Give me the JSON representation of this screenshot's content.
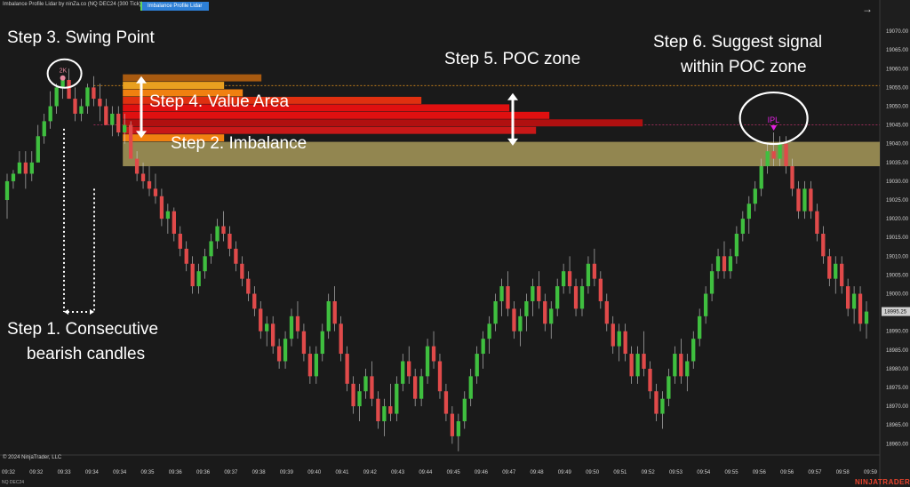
{
  "header": {
    "instrument": "Imbalance Profile Lidar by ninZa.co (NQ DEC24 (300 Tick))",
    "indicator_button": "Imbalance Profile Lidar",
    "instrument_short": "NQ DEC24"
  },
  "footer": {
    "copyright": "© 2024 NinjaTrader, LLC",
    "brand": "NINJATRADER"
  },
  "annotations": {
    "step1": "Step 1. Consecutive",
    "step1b": "bearish candles",
    "step2": "Step 2.  Imbalance",
    "step3": "Step 3. Swing Point",
    "step4": "Step 4. Value Area",
    "step5": "Step 5. POC zone",
    "step6": "Step 6. Suggest signal",
    "step6b": "within POC zone",
    "swing_label": "2K",
    "signal_label": "IPL"
  },
  "colors": {
    "background": "#1a1a1a",
    "bull": "#3fbf3f",
    "bear": "#e04a4a",
    "imbalance_zone": "#a89a5a",
    "poc_line": "#c0306a",
    "value_area_line": "#d88a1a",
    "signal": "#e020e0"
  },
  "chart_data": {
    "type": "candlestick",
    "y_axis": {
      "range": [
        18957,
        19075
      ],
      "ticks": [
        "19070.00",
        "19065.00",
        "19060.00",
        "19055.00",
        "19050.00",
        "19045.00",
        "19040.00",
        "19035.00",
        "19030.00",
        "19025.00",
        "19020.00",
        "19015.00",
        "19010.00",
        "19005.00",
        "19000.00",
        "18995.00",
        "18990.00",
        "18985.00",
        "18980.00",
        "18975.00",
        "18970.00",
        "18965.00",
        "18960.00"
      ],
      "tick_values": [
        19070,
        19065,
        19060,
        19055,
        19050,
        19045,
        19040,
        19035,
        19030,
        19025,
        19020,
        19015,
        19010,
        19005,
        19000,
        18995,
        18990,
        18985,
        18980,
        18975,
        18970,
        18965,
        18960
      ],
      "last_price_label": "18995.25",
      "last_price": 18995.25
    },
    "x_axis": {
      "labels": [
        "09:32",
        "09:32",
        "09:33",
        "09:34",
        "09:34",
        "09:35",
        "09:36",
        "09:36",
        "09:37",
        "09:38",
        "09:39",
        "09:40",
        "09:41",
        "09:42",
        "09:43",
        "09:44",
        "09:45",
        "09:46",
        "09:47",
        "09:48",
        "09:49",
        "09:50",
        "09:51",
        "09:52",
        "09:53",
        "09:54",
        "09:55",
        "09:56",
        "09:56",
        "09:57",
        "09:58",
        "09:59"
      ]
    },
    "imbalance_zone": {
      "low": 19034,
      "high": 19040.5
    },
    "poc_price": 19045,
    "value_area_high": 19055.5,
    "swing_price": 19058,
    "signal_price": 19043,
    "profile_bars": [
      {
        "price": 19057.5,
        "volume": 0.52,
        "color": "#a85a10"
      },
      {
        "price": 19055.5,
        "volume": 0.38,
        "color": "#e8a020"
      },
      {
        "price": 19053.5,
        "volume": 0.45,
        "color": "#f08010"
      },
      {
        "price": 19051.5,
        "volume": 1.12,
        "color": "#e03010"
      },
      {
        "price": 19049.5,
        "volume": 1.45,
        "color": "#e01010"
      },
      {
        "price": 19047.5,
        "volume": 1.6,
        "color": "#e01010"
      },
      {
        "price": 19045.5,
        "volume": 1.95,
        "color": "#b01010"
      },
      {
        "price": 19043.5,
        "volume": 1.55,
        "color": "#c81818"
      },
      {
        "price": 19041.5,
        "volume": 0.38,
        "color": "#f08010"
      }
    ],
    "candles": [
      [
        19025.0,
        19032.0,
        19020.0,
        19030.0
      ],
      [
        19030.0,
        19033.0,
        19028.0,
        19032.0
      ],
      [
        19032.0,
        19038.0,
        19032.0,
        19035.0
      ],
      [
        19035.0,
        19038.0,
        19028.0,
        19032.0
      ],
      [
        19032.0,
        19038.0,
        19030.0,
        19035.0
      ],
      [
        19035.0,
        19045.0,
        19035.0,
        19042.0
      ],
      [
        19042.0,
        19048.0,
        19040.0,
        19046.0
      ],
      [
        19046.0,
        19054.0,
        19044.0,
        19050.0
      ],
      [
        19050.0,
        19056.0,
        19048.0,
        19055.0
      ],
      [
        19055.0,
        19058.0,
        19052.0,
        19057.0
      ],
      [
        19057.0,
        19060.0,
        19052.0,
        19052.0
      ],
      [
        19052.0,
        19055.0,
        19046.0,
        19048.0
      ],
      [
        19048.0,
        19052.0,
        19046.0,
        19050.0
      ],
      [
        19050.0,
        19056.0,
        19048.0,
        19055.0
      ],
      [
        19055.0,
        19058.0,
        19050.0,
        19052.0
      ],
      [
        19052.0,
        19056.0,
        19046.0,
        19050.0
      ],
      [
        19050.0,
        19052.0,
        19045.0,
        19045.0
      ],
      [
        19045.0,
        19050.0,
        19042.0,
        19048.0
      ],
      [
        19048.0,
        19050.0,
        19042.0,
        19043.0
      ],
      [
        19043.0,
        19048.0,
        19040.0,
        19045.0
      ],
      [
        19045.0,
        19046.0,
        19036.0,
        19036.0
      ],
      [
        19036.0,
        19038.0,
        19030.0,
        19032.0
      ],
      [
        19032.0,
        19035.0,
        19028.0,
        19030.0
      ],
      [
        19030.0,
        19034.0,
        19026.0,
        19028.0
      ],
      [
        19028.0,
        19032.0,
        19024.0,
        19026.0
      ],
      [
        19026.0,
        19028.0,
        19018.0,
        19020.0
      ],
      [
        19020.0,
        19024.0,
        19016.0,
        19022.0
      ],
      [
        19022.0,
        19023.0,
        19014.0,
        19016.0
      ],
      [
        19016.0,
        19018.0,
        19010.0,
        19012.0
      ],
      [
        19012.0,
        19014.0,
        19006.0,
        19008.0
      ],
      [
        19008.0,
        19010.0,
        19000.0,
        19002.0
      ],
      [
        19002.0,
        19008.0,
        19000.0,
        19006.0
      ],
      [
        19006.0,
        19012.0,
        19004.0,
        19010.0
      ],
      [
        19010.0,
        19016.0,
        19008.0,
        19014.0
      ],
      [
        19014.0,
        19020.0,
        19012.0,
        19018.0
      ],
      [
        19018.0,
        19022.0,
        19014.0,
        19016.0
      ],
      [
        19016.0,
        19018.0,
        19010.0,
        19012.0
      ],
      [
        19012.0,
        19014.0,
        19006.0,
        19008.0
      ],
      [
        19008.0,
        19010.0,
        19002.0,
        19004.0
      ],
      [
        19004.0,
        19006.0,
        18998.0,
        19000.0
      ],
      [
        19000.0,
        19002.0,
        18994.0,
        18996.0
      ],
      [
        18996.0,
        18998.0,
        18988.0,
        18990.0
      ],
      [
        18990.0,
        18994.0,
        18986.0,
        18992.0
      ],
      [
        18992.0,
        18994.0,
        18984.0,
        18986.0
      ],
      [
        18986.0,
        18988.0,
        18980.0,
        18982.0
      ],
      [
        18982.0,
        18990.0,
        18980.0,
        18988.0
      ],
      [
        18988.0,
        18996.0,
        18986.0,
        18994.0
      ],
      [
        18994.0,
        18998.0,
        18988.0,
        18990.0
      ],
      [
        18990.0,
        18992.0,
        18982.0,
        18984.0
      ],
      [
        18984.0,
        18986.0,
        18976.0,
        18978.0
      ],
      [
        18978.0,
        18986.0,
        18976.0,
        18984.0
      ],
      [
        18984.0,
        18992.0,
        18982.0,
        18990.0
      ],
      [
        18990.0,
        19000.0,
        18988.0,
        18998.0
      ],
      [
        18998.0,
        19002.0,
        18990.0,
        18992.0
      ],
      [
        18992.0,
        18994.0,
        18982.0,
        18984.0
      ],
      [
        18984.0,
        18986.0,
        18974.0,
        18976.0
      ],
      [
        18976.0,
        18978.0,
        18968.0,
        18970.0
      ],
      [
        18970.0,
        18976.0,
        18966.0,
        18974.0
      ],
      [
        18974.0,
        18980.0,
        18972.0,
        18978.0
      ],
      [
        18978.0,
        18982.0,
        18970.0,
        18972.0
      ],
      [
        18972.0,
        18974.0,
        18964.0,
        18966.0
      ],
      [
        18966.0,
        18972.0,
        18962.0,
        18970.0
      ],
      [
        18970.0,
        18976.0,
        18966.0,
        18968.0
      ],
      [
        18968.0,
        18978.0,
        18966.0,
        18976.0
      ],
      [
        18976.0,
        18984.0,
        18974.0,
        18982.0
      ],
      [
        18982.0,
        18986.0,
        18976.0,
        18978.0
      ],
      [
        18978.0,
        18980.0,
        18970.0,
        18972.0
      ],
      [
        18972.0,
        18980.0,
        18970.0,
        18978.0
      ],
      [
        18978.0,
        18988.0,
        18976.0,
        18986.0
      ],
      [
        18986.0,
        18990.0,
        18980.0,
        18982.0
      ],
      [
        18982.0,
        18984.0,
        18972.0,
        18974.0
      ],
      [
        18974.0,
        18976.0,
        18966.0,
        18968.0
      ],
      [
        18968.0,
        18970.0,
        18960.0,
        18962.0
      ],
      [
        18962.0,
        18968.0,
        18958.0,
        18966.0
      ],
      [
        18966.0,
        18974.0,
        18964.0,
        18972.0
      ],
      [
        18972.0,
        18980.0,
        18970.0,
        18978.0
      ],
      [
        18978.0,
        18986.0,
        18976.0,
        18984.0
      ],
      [
        18984.0,
        18990.0,
        18980.0,
        18988.0
      ],
      [
        18988.0,
        18994.0,
        18984.0,
        18992.0
      ],
      [
        18992.0,
        19000.0,
        18990.0,
        18998.0
      ],
      [
        18998.0,
        19004.0,
        18994.0,
        19002.0
      ],
      [
        19002.0,
        19006.0,
        18994.0,
        18996.0
      ],
      [
        18996.0,
        18998.0,
        18988.0,
        18990.0
      ],
      [
        18990.0,
        18996.0,
        18986.0,
        18994.0
      ],
      [
        18994.0,
        19000.0,
        18990.0,
        18998.0
      ],
      [
        18998.0,
        19004.0,
        18994.0,
        19002.0
      ],
      [
        19002.0,
        19006.0,
        18996.0,
        18998.0
      ],
      [
        18998.0,
        19000.0,
        18990.0,
        18992.0
      ],
      [
        18992.0,
        18998.0,
        18988.0,
        18996.0
      ],
      [
        18996.0,
        19004.0,
        18994.0,
        19002.0
      ],
      [
        19002.0,
        19008.0,
        19000.0,
        19006.0
      ],
      [
        19006.0,
        19010.0,
        19000.0,
        19002.0
      ],
      [
        19002.0,
        19004.0,
        18994.0,
        18996.0
      ],
      [
        18996.0,
        19004.0,
        18994.0,
        19002.0
      ],
      [
        19002.0,
        19010.0,
        19000.0,
        19008.0
      ],
      [
        19008.0,
        19012.0,
        19002.0,
        19004.0
      ],
      [
        19004.0,
        19006.0,
        18996.0,
        18998.0
      ],
      [
        18998.0,
        19000.0,
        18990.0,
        18992.0
      ],
      [
        18992.0,
        18994.0,
        18984.0,
        18986.0
      ],
      [
        18986.0,
        18992.0,
        18982.0,
        18990.0
      ],
      [
        18990.0,
        18992.0,
        18982.0,
        18984.0
      ],
      [
        18984.0,
        18986.0,
        18976.0,
        18978.0
      ],
      [
        18978.0,
        18986.0,
        18976.0,
        18984.0
      ],
      [
        18984.0,
        18990.0,
        18978.0,
        18980.0
      ],
      [
        18980.0,
        18982.0,
        18972.0,
        18974.0
      ],
      [
        18974.0,
        18976.0,
        18966.0,
        18968.0
      ],
      [
        18968.0,
        18974.0,
        18964.0,
        18972.0
      ],
      [
        18972.0,
        18980.0,
        18970.0,
        18978.0
      ],
      [
        18978.0,
        18986.0,
        18976.0,
        18984.0
      ],
      [
        18984.0,
        18988.0,
        18976.0,
        18978.0
      ],
      [
        18978.0,
        18984.0,
        18974.0,
        18982.0
      ],
      [
        18982.0,
        18990.0,
        18980.0,
        18988.0
      ],
      [
        18988.0,
        18996.0,
        18986.0,
        18994.0
      ],
      [
        18994.0,
        19002.0,
        18992.0,
        19000.0
      ],
      [
        19000.0,
        19008.0,
        18998.0,
        19006.0
      ],
      [
        19006.0,
        19012.0,
        19004.0,
        19010.0
      ],
      [
        19010.0,
        19014.0,
        19004.0,
        19006.0
      ],
      [
        19006.0,
        19012.0,
        19004.0,
        19010.0
      ],
      [
        19010.0,
        19018.0,
        19008.0,
        19016.0
      ],
      [
        19016.0,
        19022.0,
        19014.0,
        19020.0
      ],
      [
        19020.0,
        19026.0,
        19016.0,
        19024.0
      ],
      [
        19024.0,
        19030.0,
        19022.0,
        19028.0
      ],
      [
        19028.0,
        19036.0,
        19026.0,
        19034.0
      ],
      [
        19034.0,
        19040.0,
        19032.0,
        19038.0
      ],
      [
        19038.0,
        19043.0,
        19034.0,
        19036.0
      ],
      [
        19036.0,
        19042.0,
        19034.0,
        19040.0
      ],
      [
        19040.0,
        19042.0,
        19032.0,
        19034.0
      ],
      [
        19034.0,
        19036.0,
        19026.0,
        19028.0
      ],
      [
        19028.0,
        19030.0,
        19020.0,
        19022.0
      ],
      [
        19022.0,
        19030.0,
        19020.0,
        19028.0
      ],
      [
        19028.0,
        19030.0,
        19020.0,
        19022.0
      ],
      [
        19022.0,
        19024.0,
        19014.0,
        19016.0
      ],
      [
        19016.0,
        19018.0,
        19008.0,
        19010.0
      ],
      [
        19010.0,
        19012.0,
        19002.0,
        19004.0
      ],
      [
        19004.0,
        19010.0,
        19000.0,
        19008.0
      ],
      [
        19008.0,
        19010.0,
        19000.0,
        19002.0
      ],
      [
        19002.0,
        19004.0,
        18994.0,
        18996.0
      ],
      [
        18996.0,
        19002.0,
        18992.0,
        19000.0
      ],
      [
        19000.0,
        19002.0,
        18990.0,
        18992.0
      ],
      [
        18992.0,
        18998.0,
        18988.0,
        18995.25
      ]
    ]
  }
}
